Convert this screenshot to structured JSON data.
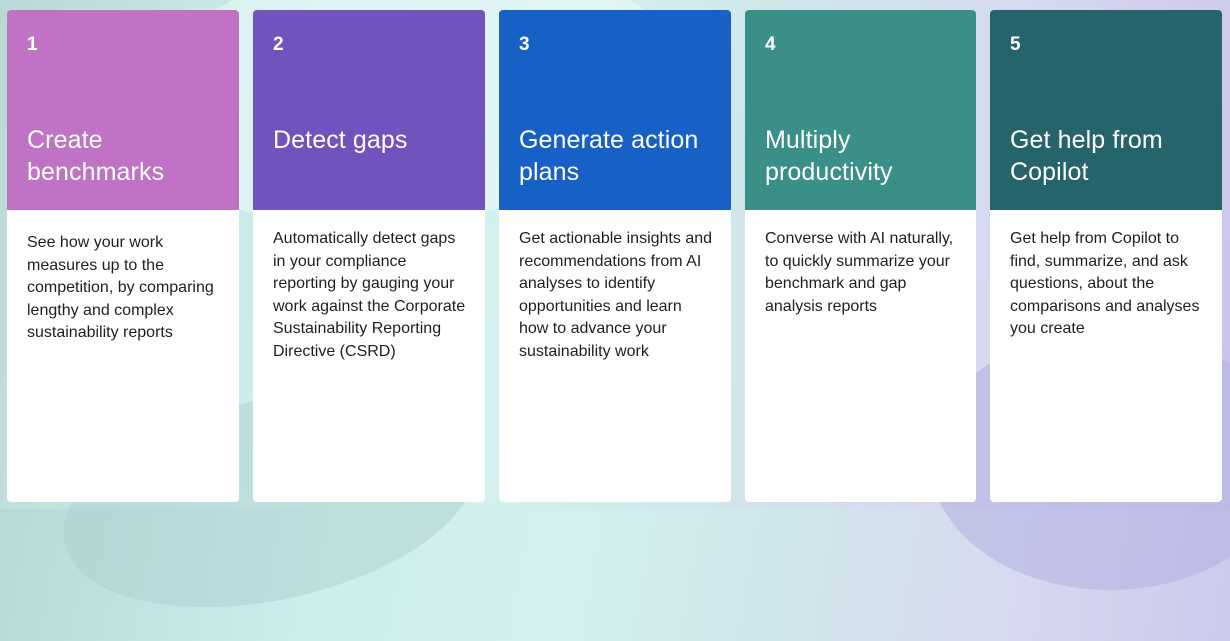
{
  "cards": [
    {
      "number": "1",
      "title": "Create benchmarks",
      "description": "See how your work measures up to the competition, by comparing lengthy and complex sustainability reports",
      "color": "#c072c4"
    },
    {
      "number": "2",
      "title": "Detect gaps",
      "description": "Automatically detect gaps in your compliance reporting by gauging your work against the Corporate Sustainability Reporting Directive (CSRD)",
      "color": "#7252bd"
    },
    {
      "number": "3",
      "title": "Generate action plans",
      "description": "Get actionable insights and recommendations from AI analyses to identify opportunities and learn how to advance your sustainability work",
      "color": "#1760c6"
    },
    {
      "number": "4",
      "title": "Multiply productivity",
      "description": "Converse with AI naturally, to quickly summarize your benchmark and gap analysis reports",
      "color": "#3a8f86"
    },
    {
      "number": "5",
      "title": "Get help from Copilot",
      "description": "Get help from Copilot to find, summarize, and ask questions, about the comparisons and analyses you create",
      "color": "#24646a"
    }
  ]
}
